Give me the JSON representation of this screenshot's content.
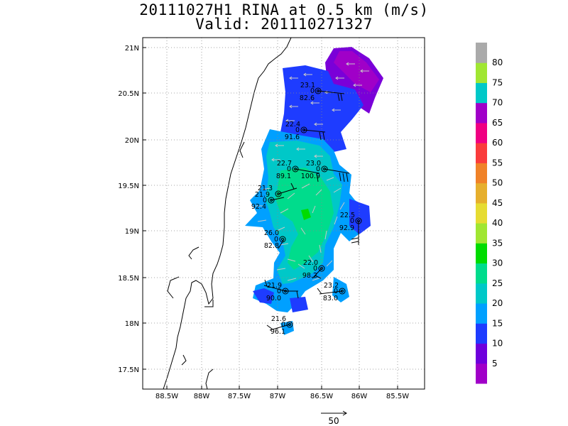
{
  "title": {
    "line1": "20111027H1 RINA at 0.5 km (m/s)",
    "line2": "Valid: 201110271327"
  },
  "map": {
    "lon_range": [
      -88.75,
      -85.5
    ],
    "lat_range": [
      17.3,
      21.1
    ],
    "x_ticks": [
      "88.5W",
      "88W",
      "87.5W",
      "87W",
      "86.5W",
      "86W",
      "85.5W"
    ],
    "y_ticks": [
      "21N",
      "20.5N",
      "20N",
      "19.5N",
      "19N",
      "18.5N",
      "18N",
      "17.5N"
    ],
    "grid": "dotted"
  },
  "colorbar": {
    "labels": [
      "5",
      "10",
      "15",
      "20",
      "25",
      "30",
      "35",
      "40",
      "45",
      "50",
      "55",
      "60",
      "65",
      "70",
      "75",
      "80"
    ],
    "colors": [
      "#a000c8",
      "#6e00dc",
      "#1e3cff",
      "#00a0ff",
      "#00c8c8",
      "#00dc8c",
      "#00dc00",
      "#a0e632",
      "#e6dc32",
      "#e6af2d",
      "#f08228",
      "#fa3c3c",
      "#f00082",
      "#a000c8",
      "#00c8c8",
      "#a0e632",
      "#aaaaaa"
    ]
  },
  "reference_vector": {
    "label": "50"
  },
  "stations": [
    {
      "id": "s1",
      "top": "23.1",
      "mid": "0",
      "bottom": "82.6"
    },
    {
      "id": "s2",
      "top": "22.4",
      "mid": "0",
      "bottom": "91.6"
    },
    {
      "id": "s3",
      "top": "22.7",
      "mid": "0",
      "bottom": "89.1"
    },
    {
      "id": "s4",
      "top": "23.0",
      "mid": "0",
      "bottom": "100.9"
    },
    {
      "id": "s5",
      "top": "21.3",
      "mid": "0",
      "bottom": "92.4"
    },
    {
      "id": "s5b",
      "top": "21.9",
      "mid": "0",
      "bottom": ""
    },
    {
      "id": "s6",
      "top": "22.5",
      "mid": "0",
      "bottom": "92.9"
    },
    {
      "id": "s7",
      "top": "26.0",
      "mid": "0",
      "bottom": "82.8"
    },
    {
      "id": "s8",
      "top": "22.0",
      "mid": "0",
      "bottom": "98.2"
    },
    {
      "id": "s9",
      "top": "21.9",
      "mid": "0",
      "bottom": "90.0"
    },
    {
      "id": "s10",
      "top": "23.2",
      "mid": "0",
      "bottom": "83.0"
    },
    {
      "id": "s11",
      "top": "21.6",
      "mid": "0",
      "bottom": "96.1"
    }
  ]
}
